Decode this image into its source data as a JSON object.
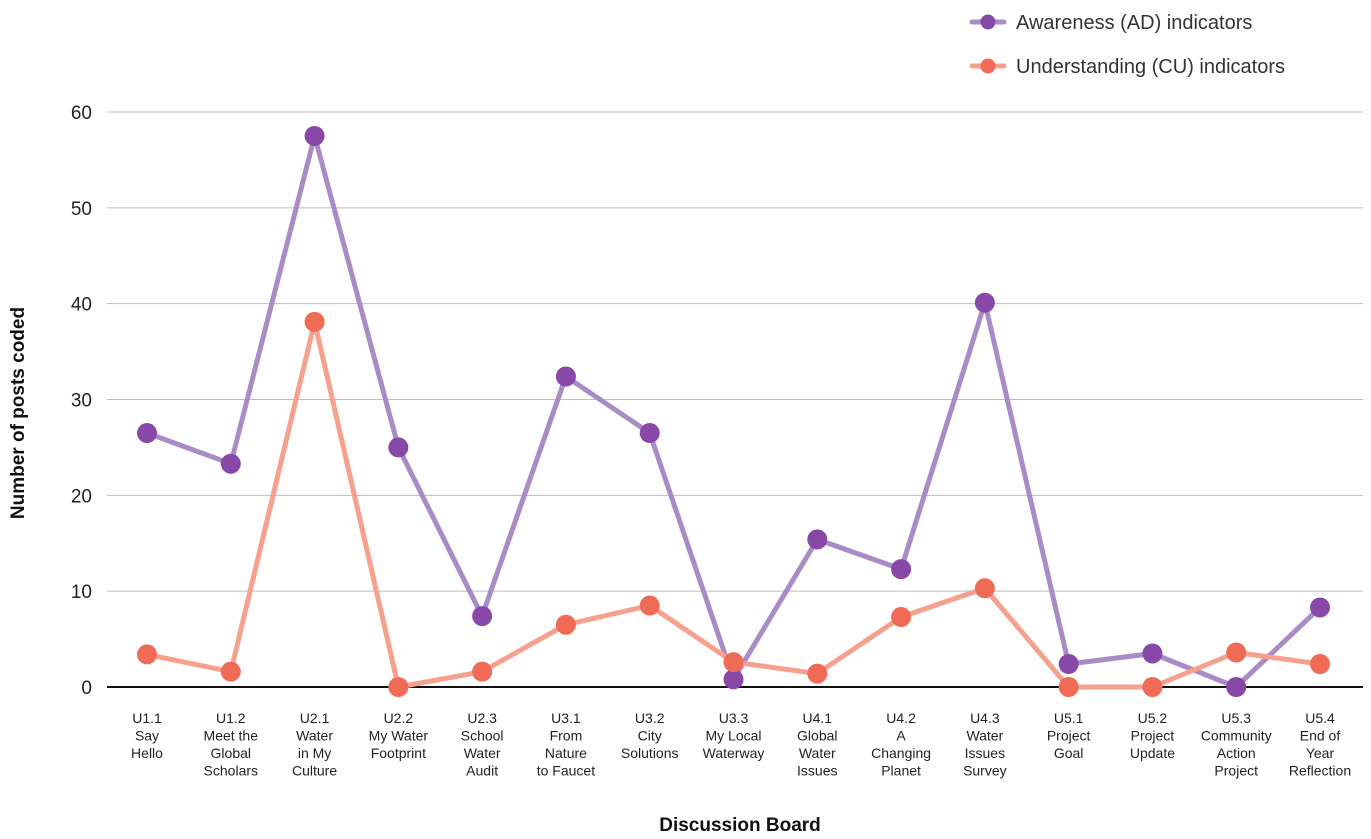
{
  "chart_data": {
    "type": "line",
    "xlabel": "Discussion Board",
    "ylabel": "Number of posts coded",
    "ylim": [
      0,
      60
    ],
    "yticks": [
      0,
      10,
      20,
      30,
      40,
      50,
      60
    ],
    "grid": true,
    "legend_placement": "top-right",
    "categories": [
      [
        "U1.1",
        "Say",
        "Hello"
      ],
      [
        "U1.2",
        "Meet the",
        "Global",
        "Scholars"
      ],
      [
        "U2.1",
        "Water",
        "in My",
        "Culture"
      ],
      [
        "U2.2",
        "My Water",
        "Footprint"
      ],
      [
        "U2.3",
        "School",
        "Water",
        "Audit"
      ],
      [
        "U3.1",
        "From",
        "Nature",
        "to Faucet"
      ],
      [
        "U3.2",
        "City",
        "Solutions"
      ],
      [
        "U3.3",
        "My Local",
        "Waterway"
      ],
      [
        "U4.1",
        "Global",
        "Water",
        "Issues"
      ],
      [
        "U4.2",
        "A",
        "Changing",
        "Planet"
      ],
      [
        "U4.3",
        "Water",
        "Issues",
        "Survey"
      ],
      [
        "U5.1",
        "Project",
        "Goal"
      ],
      [
        "U5.2",
        "Project",
        "Update"
      ],
      [
        "U5.3",
        "Community",
        "Action",
        "Project"
      ],
      [
        "U5.4",
        "End of",
        "Year",
        "Reflection"
      ]
    ],
    "series": [
      {
        "name": "Awareness (AD) indicators",
        "line_color": "#a98bc6",
        "marker_color": "#8848a8",
        "values": [
          26.5,
          23.3,
          57.5,
          25,
          7.4,
          32.4,
          26.5,
          0.8,
          15.4,
          12.3,
          40.1,
          2.4,
          3.5,
          0,
          8.3
        ]
      },
      {
        "name": "Understanding (CU) indicators",
        "line_color": "#f6a08e",
        "marker_color": "#ef6b55",
        "values": [
          3.4,
          1.6,
          38.1,
          0,
          1.6,
          6.5,
          8.5,
          2.6,
          1.4,
          7.3,
          10.3,
          0,
          0,
          3.6,
          2.4
        ]
      }
    ]
  }
}
